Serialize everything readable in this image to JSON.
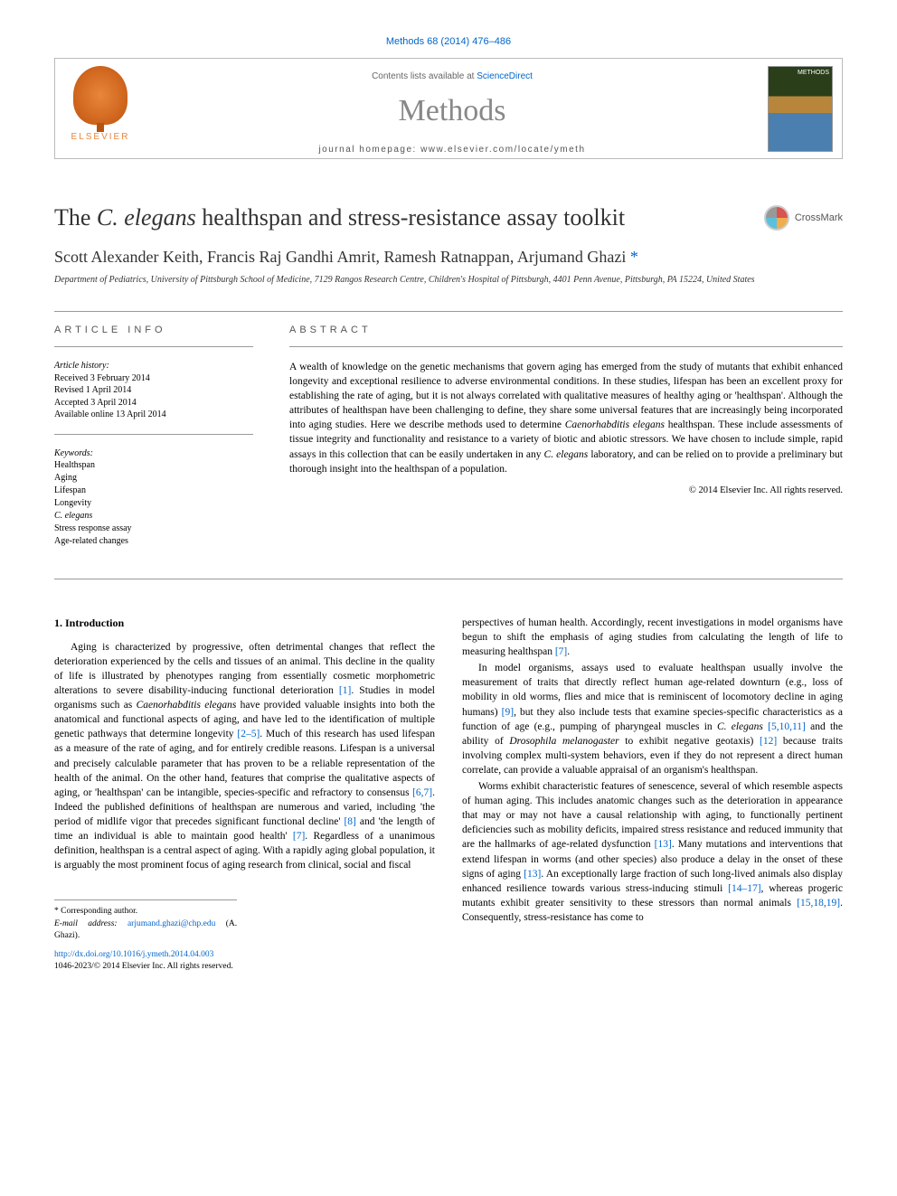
{
  "journal_ref": "Methods 68 (2014) 476–486",
  "header": {
    "contents_prefix": "Contents lists available at ",
    "sciencedirect": "ScienceDirect",
    "journal_name": "Methods",
    "homepage_prefix": "journal homepage: ",
    "homepage_url": "www.elsevier.com/locate/ymeth",
    "publisher": "ELSEVIER"
  },
  "title_pre": "The ",
  "title_italic": "C. elegans",
  "title_post": " healthspan and stress-resistance assay toolkit",
  "crossmark": "CrossMark",
  "authors": "Scott Alexander Keith, Francis Raj Gandhi Amrit, Ramesh Ratnappan, Arjumand Ghazi",
  "corr_mark": "*",
  "affiliation": "Department of Pediatrics, University of Pittsburgh School of Medicine, 7129 Rangos Research Centre, Children's Hospital of Pittsburgh, 4401 Penn Avenue, Pittsburgh, PA 15224, United States",
  "info_heading": "article info",
  "abstract_heading": "abstract",
  "history": {
    "label": "Article history:",
    "received": "Received 3 February 2014",
    "revised": "Revised 1 April 2014",
    "accepted": "Accepted 3 April 2014",
    "online": "Available online 13 April 2014"
  },
  "keywords_label": "Keywords:",
  "keywords": [
    "Healthspan",
    "Aging",
    "Lifespan",
    "Longevity",
    "C. elegans",
    "Stress response assay",
    "Age-related changes"
  ],
  "abstract_p1": "A wealth of knowledge on the genetic mechanisms that govern aging has emerged from the study of mutants that exhibit enhanced longevity and exceptional resilience to adverse environmental conditions. In these studies, lifespan has been an excellent proxy for establishing the rate of aging, but it is not always correlated with qualitative measures of healthy aging or 'healthspan'. Although the attributes of healthspan have been challenging to define, they share some universal features that are increasingly being incorporated into aging studies. Here we describe methods used to determine ",
  "abstract_italic1": "Caenorhabditis elegans",
  "abstract_p2": " healthspan. These include assessments of tissue integrity and functionality and resistance to a variety of biotic and abiotic stressors. We have chosen to include simple, rapid assays in this collection that can be easily undertaken in any ",
  "abstract_italic2": "C. elegans",
  "abstract_p3": " laboratory, and can be relied on to provide a preliminary but thorough insight into the healthspan of a population.",
  "copyright": "© 2014 Elsevier Inc. All rights reserved.",
  "intro_heading": "1. Introduction",
  "intro_col1_p1a": "Aging is characterized by progressive, often detrimental changes that reflect the deterioration experienced by the cells and tissues of an animal. This decline in the quality of life is illustrated by phenotypes ranging from essentially cosmetic morphometric alterations to severe disability-inducing functional deterioration ",
  "ref1": "[1]",
  "intro_col1_p1b": ". Studies in model organisms such as ",
  "intro_col1_it1": "Caenorhabditis elegans",
  "intro_col1_p1c": " have provided valuable insights into both the anatomical and functional aspects of aging, and have led to the identification of multiple genetic pathways that determine longevity ",
  "ref2": "[2–5]",
  "intro_col1_p1d": ". Much of this research has used lifespan as a measure of the rate of aging, and for entirely credible reasons. Lifespan is a universal and precisely calculable parameter that has proven to be a reliable representation of the health of the animal. On the other hand, features that comprise the qualitative aspects of aging, or 'healthspan' can be intangible, species-specific and refractory to consensus ",
  "ref67": "[6,7]",
  "intro_col1_p1e": ". Indeed the published definitions of healthspan are numerous and varied, including 'the period of midlife vigor that precedes significant functional decline' ",
  "ref8": "[8]",
  "intro_col1_p1f": " and 'the length of time an individual is able to maintain good health' ",
  "ref7": "[7]",
  "intro_col1_p1g": ". Regardless of a unanimous definition, healthspan is a central aspect of aging. With a rapidly aging global population, it is arguably the most prominent focus of aging research from clinical, social and fiscal",
  "col2_p1a": "perspectives of human health. Accordingly, recent investigations in model organisms have begun to shift the emphasis of aging studies from calculating the length of life to measuring healthspan ",
  "col2_ref7": "[7]",
  "col2_p1b": ".",
  "col2_p2a": "In model organisms, assays used to evaluate healthspan usually involve the measurement of traits that directly reflect human age-related downturn (e.g., loss of mobility in old worms, flies and mice that is reminiscent of locomotory decline in aging humans) ",
  "col2_ref9": "[9]",
  "col2_p2b": ", but they also include tests that examine species-specific characteristics as a function of age (e.g., pumping of pharyngeal muscles in ",
  "col2_it1": "C. elegans",
  "col2_p2c": " ",
  "col2_ref51011": "[5,10,11]",
  "col2_p2d": " and the ability of ",
  "col2_it2": "Drosophila melanogaster",
  "col2_p2e": " to exhibit negative geotaxis) ",
  "col2_ref12": "[12]",
  "col2_p2f": " because traits involving complex multi-system behaviors, even if they do not represent a direct human correlate, can provide a valuable appraisal of an organism's healthspan.",
  "col2_p3a": "Worms exhibit characteristic features of senescence, several of which resemble aspects of human aging. This includes anatomic changes such as the deterioration in appearance that may or may not have a causal relationship with aging, to functionally pertinent deficiencies such as mobility deficits, impaired stress resistance and reduced immunity that are the hallmarks of age-related dysfunction ",
  "col2_ref13": "[13]",
  "col2_p3b": ". Many mutations and interventions that extend lifespan in worms (and other species) also produce a delay in the onset of these signs of aging ",
  "col2_ref13b": "[13]",
  "col2_p3c": ". An exceptionally large fraction of such long-lived animals also display enhanced resilience towards various stress-inducing stimuli ",
  "col2_ref1417": "[14–17]",
  "col2_p3d": ", whereas progeric mutants exhibit greater sensitivity to these stressors than normal animals ",
  "col2_ref151819": "[15,18,19]",
  "col2_p3e": ". Consequently, stress-resistance has come to",
  "footnote_corr": "* Corresponding author.",
  "footnote_email_label": "E-mail address:",
  "footnote_email": "arjumand.ghazi@chp.edu",
  "footnote_email_author": "(A. Ghazi).",
  "doi": "http://dx.doi.org/10.1016/j.ymeth.2014.04.003",
  "issn_copyright": "1046-2023/© 2014 Elsevier Inc. All rights reserved.",
  "colors": {
    "link": "#0066cc",
    "elsevier": "#e8863b",
    "journal_name": "#888888",
    "text": "#000000",
    "border": "#bbbbbb"
  }
}
